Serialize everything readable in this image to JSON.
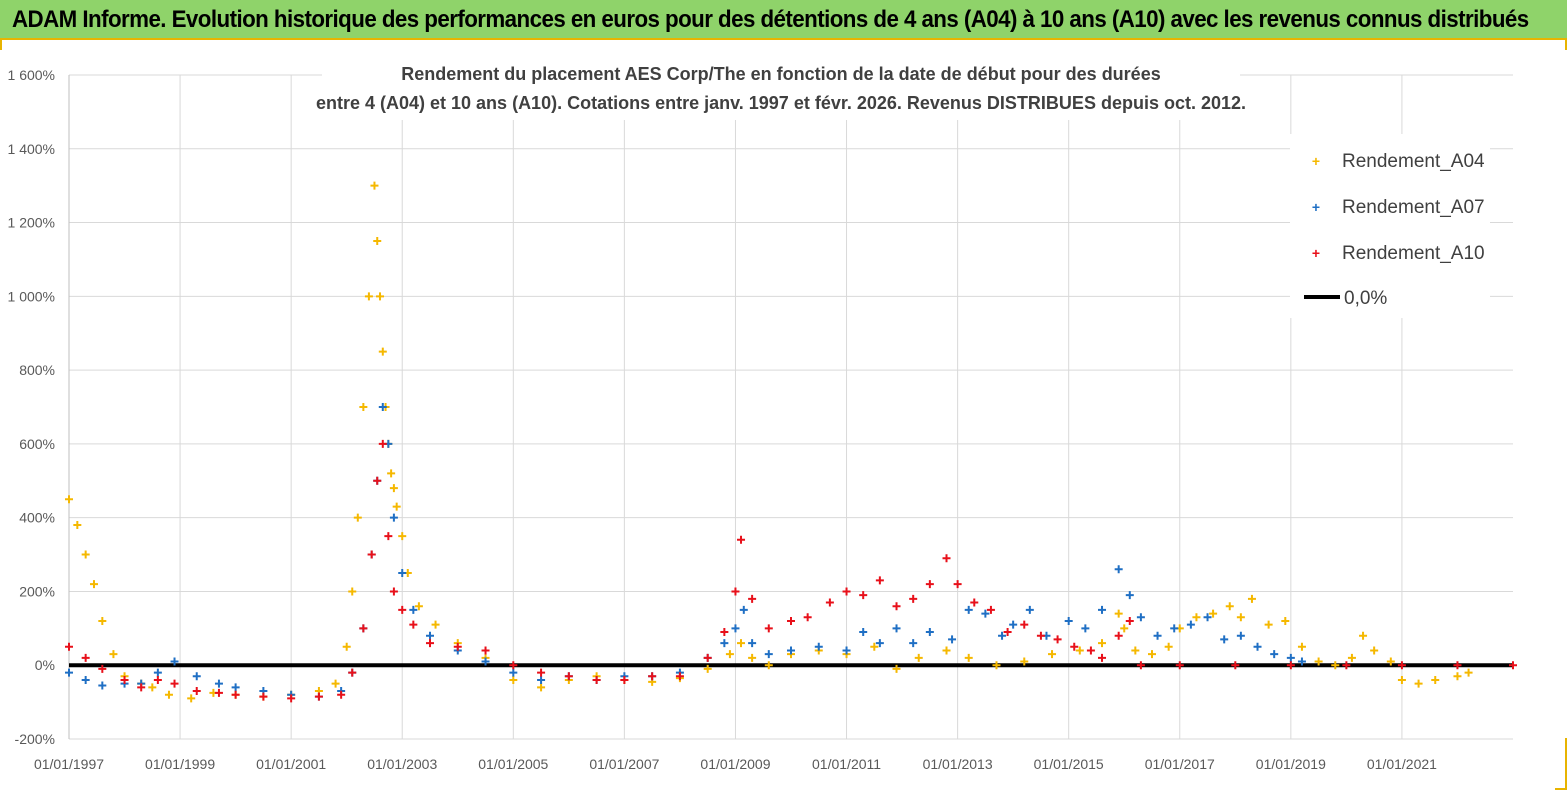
{
  "header": {
    "title": "ADAM Informe. Evolution historique des performances en euros pour des détentions de 4 ans (A04) à 10 ans (A10) avec les revenus connus distribués"
  },
  "chart_data": {
    "type": "scatter",
    "title_lines": [
      "Rendement du placement AES Corp/The en fonction de la date de début pour des durées",
      "entre 4 (A04) et 10 ans (A10). Cotations entre janv. 1997 et févr. 2026. Revenus DISTRIBUES depuis oct. 2012."
    ],
    "xlabel": "",
    "ylabel": "",
    "x_range": [
      1997.0,
      2023.0
    ],
    "ylim": [
      -200,
      1600
    ],
    "y_ticks": [
      -200,
      0,
      200,
      400,
      600,
      800,
      1000,
      1200,
      1400,
      1600
    ],
    "y_tick_labels": [
      "-200%",
      "0%",
      "200%",
      "400%",
      "600%",
      "800%",
      "1 000%",
      "1 200%",
      "1 400%",
      "1 600%"
    ],
    "x_ticks": [
      1997,
      1999,
      2001,
      2003,
      2005,
      2007,
      2009,
      2011,
      2013,
      2015,
      2017,
      2019,
      2021
    ],
    "x_tick_labels": [
      "01/01/1997",
      "01/01/1999",
      "01/01/2001",
      "01/01/2003",
      "01/01/2005",
      "01/01/2007",
      "01/01/2009",
      "01/01/2011",
      "01/01/2013",
      "01/01/2015",
      "01/01/2017",
      "01/01/2019",
      "01/01/2021"
    ],
    "grid": true,
    "legend_position": "top-right",
    "legend": [
      "Rendement_A04",
      "Rendement_A07",
      "Rendement_A10",
      "0,0%"
    ],
    "reference_line": {
      "name": "0,0%",
      "value": 0,
      "color": "#000000"
    },
    "series": [
      {
        "name": "Rendement_A04",
        "color": "#f5b800",
        "x": [
          1997.0,
          1997.15,
          1997.3,
          1997.45,
          1997.6,
          1997.8,
          1998.0,
          1998.3,
          1998.5,
          1998.8,
          1999.2,
          1999.6,
          2000.0,
          2000.5,
          2001.0,
          2001.5,
          2001.8,
          2002.0,
          2002.1,
          2002.2,
          2002.3,
          2002.4,
          2002.5,
          2002.55,
          2002.6,
          2002.65,
          2002.7,
          2002.75,
          2002.8,
          2002.85,
          2002.9,
          2003.0,
          2003.1,
          2003.3,
          2003.6,
          2004.0,
          2004.5,
          2005.0,
          2005.5,
          2006.0,
          2006.5,
          2007.0,
          2007.5,
          2008.0,
          2008.5,
          2008.9,
          2009.1,
          2009.3,
          2009.6,
          2010.0,
          2010.5,
          2011.0,
          2011.5,
          2011.9,
          2012.3,
          2012.8,
          2013.2,
          2013.7,
          2014.2,
          2014.7,
          2015.2,
          2015.6,
          2015.9,
          2016.0,
          2016.2,
          2016.5,
          2016.8,
          2017.0,
          2017.3,
          2017.6,
          2017.9,
          2018.1,
          2018.3,
          2018.6,
          2018.9,
          2019.2,
          2019.5,
          2019.8,
          2020.1,
          2020.3,
          2020.5,
          2020.8,
          2021.0,
          2021.3,
          2021.6,
          2022.0,
          2022.2
        ],
        "values": [
          450,
          380,
          300,
          220,
          120,
          30,
          -30,
          -50,
          -60,
          -80,
          -90,
          -75,
          -80,
          -85,
          -80,
          -70,
          -50,
          50,
          200,
          400,
          700,
          1000,
          1300,
          1150,
          1000,
          850,
          700,
          600,
          520,
          480,
          430,
          350,
          250,
          160,
          110,
          60,
          20,
          -40,
          -60,
          -40,
          -30,
          -40,
          -45,
          -35,
          -10,
          30,
          60,
          20,
          0,
          30,
          40,
          30,
          50,
          -10,
          20,
          40,
          20,
          0,
          10,
          30,
          40,
          60,
          140,
          100,
          40,
          30,
          50,
          100,
          130,
          140,
          160,
          130,
          180,
          110,
          120,
          50,
          10,
          0,
          20,
          80,
          40,
          10,
          -40,
          -50,
          -40,
          -30,
          -20
        ]
      },
      {
        "name": "Rendement_A07",
        "color": "#1f6fc4",
        "x": [
          1997.0,
          1997.3,
          1997.6,
          1998.0,
          1998.3,
          1998.6,
          1998.9,
          1999.3,
          1999.7,
          2000.0,
          2000.5,
          2001.0,
          2001.5,
          2001.9,
          2002.1,
          2002.3,
          2002.45,
          2002.55,
          2002.65,
          2002.75,
          2002.85,
          2003.0,
          2003.2,
          2003.5,
          2004.0,
          2004.5,
          2005.0,
          2005.5,
          2006.0,
          2006.5,
          2007.0,
          2007.5,
          2008.0,
          2008.5,
          2008.8,
          2009.0,
          2009.15,
          2009.3,
          2009.6,
          2010.0,
          2010.5,
          2011.0,
          2011.3,
          2011.6,
          2011.9,
          2012.2,
          2012.5,
          2012.9,
          2013.2,
          2013.5,
          2013.8,
          2014.0,
          2014.3,
          2014.6,
          2015.0,
          2015.3,
          2015.6,
          2015.9,
          2016.1,
          2016.3,
          2016.6,
          2016.9,
          2017.2,
          2017.5,
          2017.8,
          2018.1,
          2018.4,
          2018.7,
          2019.0,
          2019.2
        ],
        "values": [
          -20,
          -40,
          -55,
          -50,
          -50,
          -20,
          10,
          -30,
          -50,
          -60,
          -70,
          -80,
          -85,
          -70,
          -20,
          100,
          300,
          500,
          700,
          600,
          400,
          250,
          150,
          80,
          40,
          10,
          -20,
          -40,
          -30,
          -40,
          -30,
          -30,
          -20,
          20,
          60,
          100,
          150,
          60,
          30,
          40,
          50,
          40,
          90,
          60,
          100,
          60,
          90,
          70,
          150,
          140,
          80,
          110,
          150,
          80,
          120,
          100,
          150,
          260,
          190,
          130,
          80,
          100,
          110,
          130,
          70,
          80,
          50,
          30,
          20,
          10
        ]
      },
      {
        "name": "Rendement_A10",
        "color": "#e8101a",
        "x": [
          1997.0,
          1997.3,
          1997.6,
          1998.0,
          1998.3,
          1998.6,
          1998.9,
          1999.3,
          1999.7,
          2000.0,
          2000.5,
          2001.0,
          2001.5,
          2001.9,
          2002.1,
          2002.3,
          2002.45,
          2002.55,
          2002.65,
          2002.75,
          2002.85,
          2003.0,
          2003.2,
          2003.5,
          2004.0,
          2004.5,
          2005.0,
          2005.5,
          2006.0,
          2006.5,
          2007.0,
          2007.5,
          2008.0,
          2008.5,
          2008.8,
          2009.0,
          2009.1,
          2009.3,
          2009.6,
          2010.0,
          2010.3,
          2010.7,
          2011.0,
          2011.3,
          2011.6,
          2011.9,
          2012.2,
          2012.5,
          2012.8,
          2013.0,
          2013.3,
          2013.6,
          2013.9,
          2014.2,
          2014.5,
          2014.8,
          2015.1,
          2015.4,
          2015.6,
          2015.9,
          2016.1,
          2016.3,
          2017.0,
          2018.0,
          2019.0,
          2020.0,
          2021.0,
          2022.0,
          2023.0
        ],
        "values": [
          50,
          20,
          -10,
          -40,
          -60,
          -40,
          -50,
          -70,
          -75,
          -80,
          -85,
          -90,
          -85,
          -80,
          -20,
          100,
          300,
          500,
          600,
          350,
          200,
          150,
          110,
          60,
          50,
          40,
          0,
          -20,
          -30,
          -40,
          -40,
          -30,
          -30,
          20,
          90,
          200,
          340,
          180,
          100,
          120,
          130,
          170,
          200,
          190,
          230,
          160,
          180,
          220,
          290,
          220,
          170,
          150,
          90,
          110,
          80,
          70,
          50,
          40,
          20,
          80,
          120,
          0,
          0,
          0,
          0,
          0,
          0,
          0,
          0
        ]
      }
    ]
  }
}
